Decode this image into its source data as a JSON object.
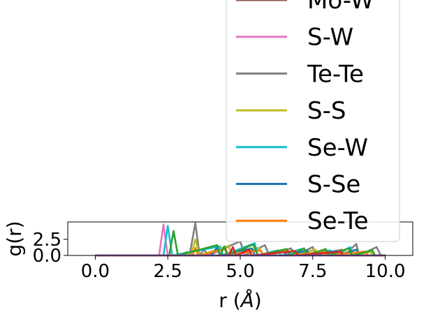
{
  "chart_data": {
    "type": "line",
    "xlabel": "r (",
    "xlabel_unit": "Å",
    "xlabel_close": ")",
    "ylabel": "g(r)",
    "xlim": [
      -0.95,
      10.95
    ],
    "ylim": [
      0,
      5.2
    ],
    "xticks": [
      0.0,
      2.5,
      5.0,
      7.5,
      10.0
    ],
    "xtick_labels": [
      "0.0",
      "2.5",
      "5.0",
      "7.5",
      "10.0"
    ],
    "yticks": [
      0.0,
      2.5
    ],
    "ytick_labels": [
      "0.0",
      "2.5"
    ],
    "legend_location": "upper-right",
    "series": [
      {
        "name": "Mo-W",
        "color": "#8c564b",
        "points": [
          [
            0,
            0
          ],
          [
            10,
            0
          ]
        ]
      },
      {
        "name": "S-W",
        "color": "#e377c2",
        "points": [
          [
            0,
            0
          ],
          [
            2.2,
            0
          ],
          [
            2.35,
            4.8
          ],
          [
            2.5,
            0
          ],
          [
            10,
            0
          ]
        ]
      },
      {
        "name": "Te-Te",
        "color": "#7f7f7f",
        "points": [
          [
            0,
            0
          ],
          [
            3.25,
            0
          ],
          [
            3.45,
            5.0
          ],
          [
            3.6,
            0
          ],
          [
            3.75,
            0.9
          ],
          [
            3.9,
            0
          ],
          [
            5.0,
            2.2
          ],
          [
            5.15,
            0
          ],
          [
            5.85,
            1.6
          ],
          [
            6.0,
            0
          ],
          [
            6.75,
            1.1
          ],
          [
            6.9,
            0
          ],
          [
            7.5,
            1.3
          ],
          [
            7.6,
            0
          ],
          [
            8.5,
            0.9
          ],
          [
            8.6,
            0
          ],
          [
            9.0,
            1.8
          ],
          [
            9.1,
            0
          ],
          [
            9.7,
            1.3
          ],
          [
            9.85,
            0
          ],
          [
            10,
            0
          ]
        ]
      },
      {
        "name": "S-S",
        "color": "#bcbd22",
        "points": [
          [
            0,
            0
          ],
          [
            3.0,
            0
          ],
          [
            3.15,
            0.6
          ],
          [
            3.3,
            0
          ],
          [
            3.45,
            2.5
          ],
          [
            3.6,
            0
          ],
          [
            4.6,
            1.5
          ],
          [
            4.7,
            0
          ],
          [
            5.65,
            1.2
          ],
          [
            5.8,
            0
          ],
          [
            6.6,
            0.7
          ],
          [
            6.75,
            0
          ],
          [
            7.6,
            0.9
          ],
          [
            7.7,
            0
          ],
          [
            8.6,
            0.8
          ],
          [
            8.7,
            0
          ],
          [
            9.5,
            0.5
          ],
          [
            9.6,
            0
          ],
          [
            10,
            0
          ]
        ]
      },
      {
        "name": "Se-W",
        "color": "#17becf",
        "points": [
          [
            0,
            0
          ],
          [
            2.35,
            0
          ],
          [
            2.5,
            4.6
          ],
          [
            2.65,
            0
          ],
          [
            4.3,
            1.4
          ],
          [
            4.4,
            0
          ],
          [
            5.5,
            1.9
          ],
          [
            5.6,
            0
          ],
          [
            6.3,
            0.8
          ],
          [
            6.4,
            0
          ],
          [
            7.1,
            1.0
          ],
          [
            7.2,
            0
          ],
          [
            8.1,
            0.8
          ],
          [
            8.2,
            0
          ],
          [
            8.8,
            1.3
          ],
          [
            8.9,
            0
          ],
          [
            10,
            0
          ]
        ]
      },
      {
        "name": "S-Se",
        "color": "#1f77b4",
        "points": [
          [
            0,
            0
          ],
          [
            4.0,
            0
          ],
          [
            4.2,
            1.2
          ],
          [
            4.3,
            0
          ],
          [
            5.4,
            1.1
          ],
          [
            5.5,
            0
          ],
          [
            6.5,
            0.7
          ],
          [
            6.6,
            0
          ],
          [
            7.3,
            0.8
          ],
          [
            7.4,
            0
          ],
          [
            8.3,
            0.7
          ],
          [
            8.4,
            0
          ],
          [
            9.0,
            0.9
          ],
          [
            9.1,
            0
          ],
          [
            10,
            0
          ]
        ]
      },
      {
        "name": "Se-Te",
        "color": "#ff7f0e",
        "points": [
          [
            0,
            0
          ],
          [
            3.35,
            0
          ],
          [
            3.45,
            1.2
          ],
          [
            3.55,
            0
          ],
          [
            4.5,
            1.0
          ],
          [
            4.6,
            0
          ],
          [
            5.7,
            0.8
          ],
          [
            5.8,
            0
          ],
          [
            6.55,
            0.7
          ],
          [
            6.7,
            0
          ],
          [
            7.9,
            0.6
          ],
          [
            8.0,
            0
          ],
          [
            9.3,
            0.6
          ],
          [
            9.4,
            0
          ],
          [
            10,
            0
          ]
        ]
      },
      {
        "name": "",
        "color": "#2ca02c",
        "points": [
          [
            0,
            0
          ],
          [
            2.55,
            0
          ],
          [
            2.7,
            3.8
          ],
          [
            2.85,
            0
          ],
          [
            4.2,
            1.6
          ],
          [
            4.3,
            0
          ],
          [
            4.45,
            1.4
          ],
          [
            4.55,
            0
          ],
          [
            5.45,
            1.7
          ],
          [
            5.6,
            0
          ],
          [
            6.6,
            1.0
          ],
          [
            6.7,
            0
          ],
          [
            7.2,
            1.1
          ],
          [
            7.3,
            0
          ],
          [
            7.95,
            1.0
          ],
          [
            8.05,
            0
          ],
          [
            8.75,
            1.1
          ],
          [
            8.85,
            0
          ],
          [
            9.55,
            0.8
          ],
          [
            9.65,
            0
          ],
          [
            10,
            0
          ]
        ]
      },
      {
        "name": "",
        "color": "#d62728",
        "points": [
          [
            0,
            0
          ],
          [
            4.6,
            0
          ],
          [
            4.75,
            1.3
          ],
          [
            4.85,
            0
          ],
          [
            5.3,
            0.9
          ],
          [
            5.4,
            0
          ],
          [
            6.9,
            0.7
          ],
          [
            7.0,
            0
          ],
          [
            8.45,
            0.6
          ],
          [
            8.55,
            0
          ],
          [
            10,
            0
          ]
        ]
      },
      {
        "name": "",
        "color": "#9467bd",
        "points": [
          [
            0,
            0
          ],
          [
            10,
            0
          ]
        ]
      }
    ],
    "legend_entries": [
      "Mo-W",
      "S-W",
      "Te-Te",
      "S-S",
      "Se-W",
      "S-Se",
      "Se-Te"
    ]
  }
}
